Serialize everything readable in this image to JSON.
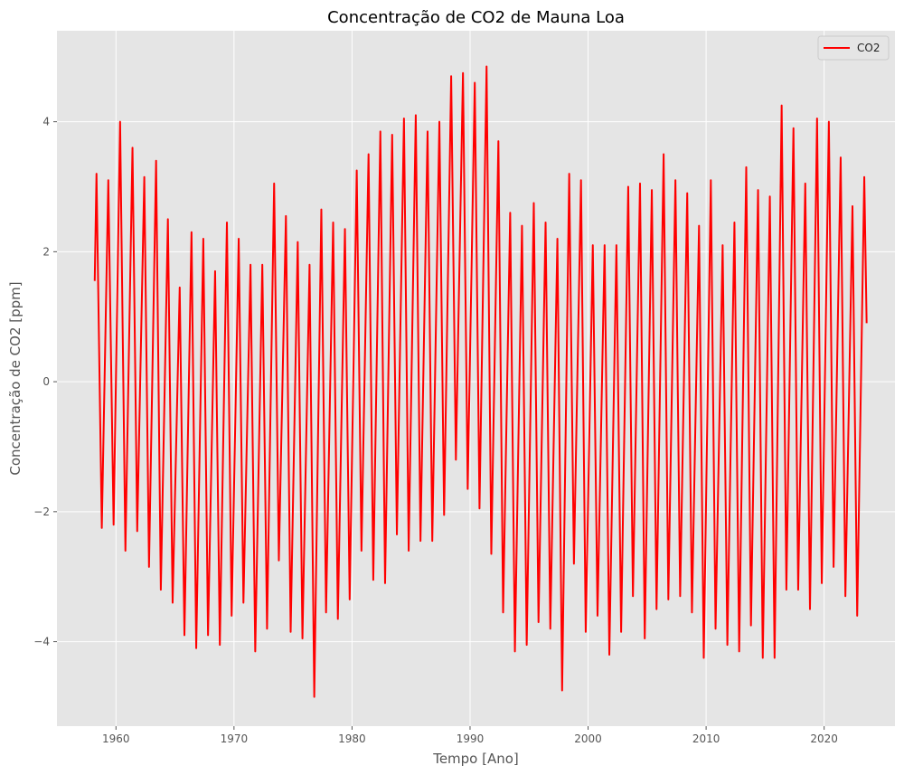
{
  "chart_data": {
    "type": "line",
    "title": "Concentração de CO2 de Mauna Loa",
    "xlabel": "Tempo [Ano]",
    "ylabel": "Concentração de CO2 [ppm]",
    "xlim": [
      1955,
      2026
    ],
    "ylim": [
      -5.3,
      5.4
    ],
    "xticks": [
      1960,
      1970,
      1980,
      1990,
      2000,
      2010,
      2020
    ],
    "yticks": [
      -4,
      -2,
      0,
      2,
      4
    ],
    "xtick_labels": [
      "1960",
      "1970",
      "1980",
      "1990",
      "2000",
      "2010",
      "2020"
    ],
    "ytick_labels": [
      "−4",
      "−2",
      "0",
      "2",
      "4"
    ],
    "grid": true,
    "legend_position": "top-right",
    "series": [
      {
        "name": "CO2",
        "color": "#ff0000",
        "x": [
          1958.2,
          1958.35,
          1958.8,
          1959.35,
          1959.8,
          1960.35,
          1960.8,
          1961.4,
          1961.8,
          1962.4,
          1962.8,
          1963.4,
          1963.8,
          1964.4,
          1964.8,
          1965.4,
          1965.8,
          1966.4,
          1966.8,
          1967.4,
          1967.8,
          1968.4,
          1968.8,
          1969.4,
          1969.8,
          1970.4,
          1970.8,
          1971.4,
          1971.8,
          1972.4,
          1972.8,
          1973.4,
          1973.8,
          1974.4,
          1974.8,
          1975.4,
          1975.8,
          1976.4,
          1976.8,
          1977.4,
          1977.8,
          1978.4,
          1978.8,
          1979.4,
          1979.8,
          1980.4,
          1980.8,
          1981.4,
          1981.8,
          1982.4,
          1982.8,
          1983.4,
          1983.8,
          1984.4,
          1984.8,
          1985.4,
          1985.8,
          1986.4,
          1986.8,
          1987.4,
          1987.8,
          1988.4,
          1988.8,
          1989.4,
          1989.8,
          1990.4,
          1990.8,
          1991.4,
          1991.8,
          1992.4,
          1992.8,
          1993.4,
          1993.8,
          1994.4,
          1994.8,
          1995.4,
          1995.8,
          1996.4,
          1996.8,
          1997.4,
          1997.8,
          1998.4,
          1998.8,
          1999.4,
          1999.8,
          2000.4,
          2000.8,
          2001.4,
          2001.8,
          2002.4,
          2002.8,
          2003.4,
          2003.8,
          2004.4,
          2004.8,
          2005.4,
          2005.8,
          2006.4,
          2006.8,
          2007.4,
          2007.8,
          2008.4,
          2008.8,
          2009.4,
          2009.8,
          2010.4,
          2010.8,
          2011.4,
          2011.8,
          2012.4,
          2012.8,
          2013.4,
          2013.8,
          2014.4,
          2014.8,
          2015.4,
          2015.8,
          2016.4,
          2016.8,
          2017.4,
          2017.8,
          2018.4,
          2018.8,
          2019.4,
          2019.8,
          2020.4,
          2020.8,
          2021.4,
          2021.8,
          2022.4,
          2022.8,
          2023.4,
          2023.6
        ],
        "y": [
          1.55,
          3.2,
          -2.25,
          3.1,
          -2.2,
          4.0,
          -2.6,
          3.6,
          -2.3,
          3.15,
          -2.85,
          3.4,
          -3.2,
          2.5,
          -3.4,
          1.45,
          -3.9,
          2.3,
          -4.1,
          2.2,
          -3.9,
          1.7,
          -4.05,
          2.45,
          -3.6,
          2.2,
          -3.4,
          1.8,
          -4.15,
          1.8,
          -3.8,
          3.05,
          -2.75,
          2.55,
          -3.85,
          2.15,
          -3.95,
          1.8,
          -4.85,
          2.65,
          -3.55,
          2.45,
          -3.65,
          2.35,
          -3.35,
          3.25,
          -2.6,
          3.5,
          -3.05,
          3.85,
          -3.1,
          3.8,
          -2.35,
          4.05,
          -2.6,
          4.1,
          -2.45,
          3.85,
          -2.45,
          4.0,
          -2.05,
          4.7,
          -1.2,
          4.75,
          -1.65,
          4.6,
          -1.95,
          4.85,
          -2.65,
          3.7,
          -3.55,
          2.6,
          -4.15,
          2.4,
          -4.05,
          2.75,
          -3.7,
          2.45,
          -3.8,
          2.2,
          -4.75,
          3.2,
          -2.8,
          3.1,
          -3.85,
          2.1,
          -3.6,
          2.1,
          -4.2,
          2.1,
          -3.85,
          3.0,
          -3.3,
          3.05,
          -3.95,
          2.95,
          -3.5,
          3.5,
          -3.35,
          3.1,
          -3.3,
          2.9,
          -3.55,
          2.4,
          -4.25,
          3.1,
          -3.8,
          2.1,
          -4.05,
          2.45,
          -4.15,
          3.3,
          -3.75,
          2.95,
          -4.25,
          2.85,
          -4.25,
          4.25,
          -3.2,
          3.9,
          -3.2,
          3.05,
          -3.5,
          4.05,
          -3.1,
          4.0,
          -2.85,
          3.45,
          -3.3,
          2.7,
          -3.6,
          3.15,
          0.9
        ]
      }
    ]
  }
}
